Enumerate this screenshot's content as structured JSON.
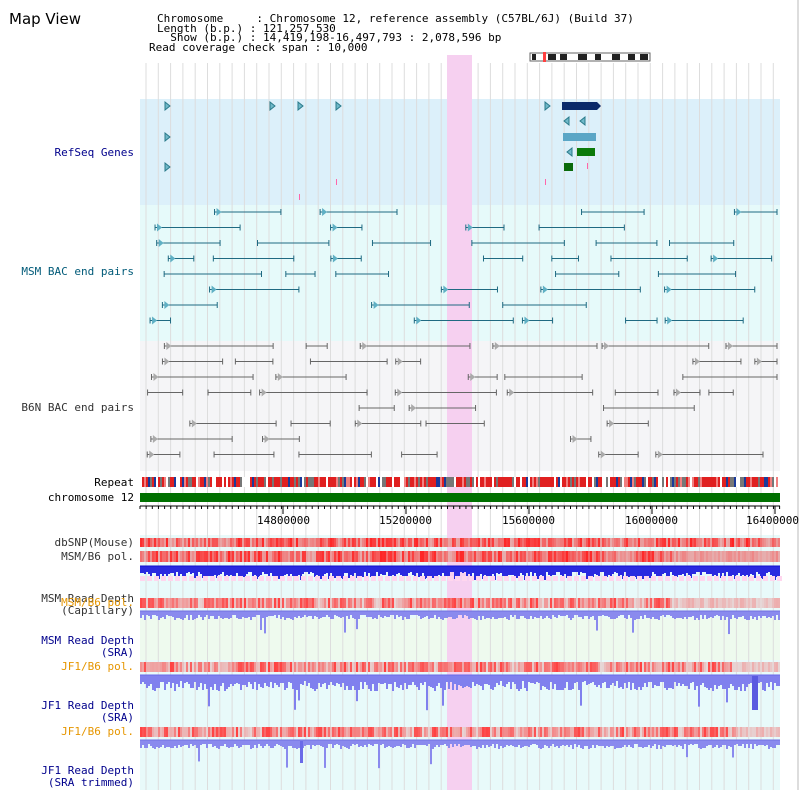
{
  "title": "Map View",
  "header": {
    "lines": [
      "Chromosome     : Chromosome 12, reference assembly (C57BL/6J) (Build 37)",
      "Length (b.p.) : 121,257,530",
      "  Show (b.p.) : 14,419,198-16,497,793 : 2,078,596 bp",
      "Read coverage check span : 10,000"
    ]
  },
  "tracks": {
    "refseq": "RefSeq Genes",
    "msm_bac": "MSM BAC end pairs",
    "b6n_bac": "B6N BAC end pairs",
    "repeat": "Repeat",
    "chromosome": "chromosome 12",
    "dbsnp": "dbSNP(Mouse)",
    "msm_b6_pol": "MSM/B6 pol.",
    "msm_depth_cap_1": "MSM Read Depth",
    "msm_depth_cap_2": "(Capillary)",
    "msm_b6_pol_2": "MSM/B6 pol.",
    "msm_depth_sra_1": "MSM Read Depth",
    "msm_depth_sra_2": "(SRA)",
    "jf1_b6_pol": "JF1/B6 pol.",
    "jf1_depth_sra_1": "JF1 Read Depth",
    "jf1_depth_sra_2": "(SRA)",
    "jf1_b6_pol_2": "JF1/B6 pol.",
    "jf1_depth_trim_1": "JF1 Read Depth",
    "jf1_depth_trim_2": "(SRA trimmed)"
  },
  "axis": {
    "ticks": [
      "14800000",
      "15200000",
      "15600000",
      "16000000",
      "16400000"
    ]
  },
  "colors": {
    "refseq_bg": "#dcf0fa",
    "msm_bac_bg": "#e6fafa",
    "b6n_bac_bg": "#f5f5f7",
    "highlight": "#f6d0f0",
    "chromosome_bar": "#007000",
    "blue_label": "#00008c",
    "teal_label": "#005a78",
    "orange_label": "#e69600"
  }
}
